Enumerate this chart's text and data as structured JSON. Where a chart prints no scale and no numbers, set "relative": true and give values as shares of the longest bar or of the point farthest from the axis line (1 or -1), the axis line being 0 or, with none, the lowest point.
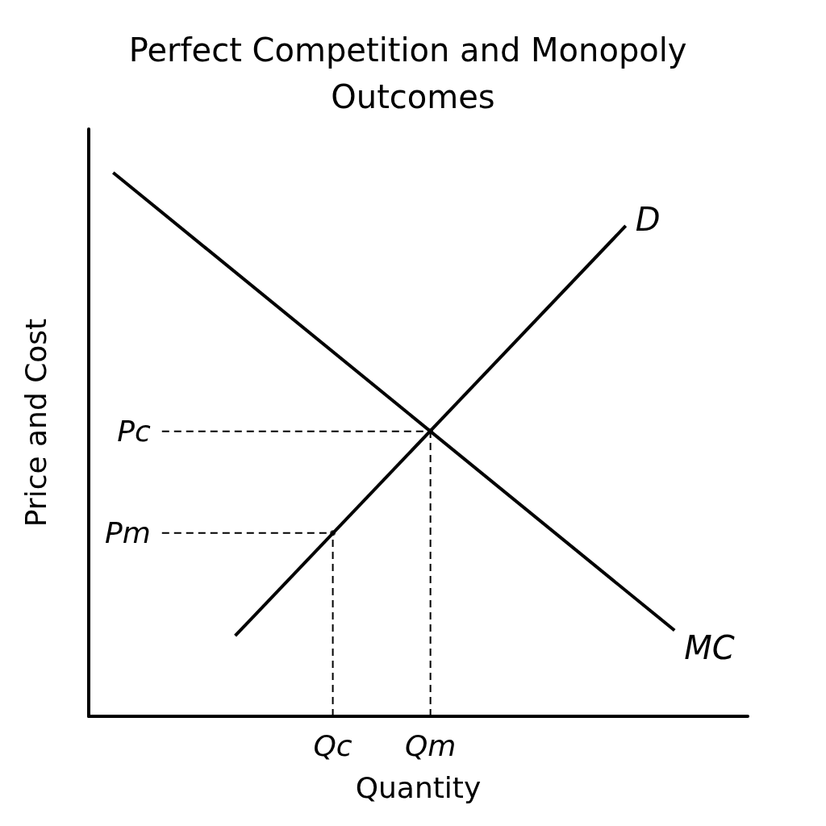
{
  "chart_data": {
    "type": "line",
    "title": "Perfect Competition and Monopoly Outcomes",
    "xlabel": "Quantity",
    "ylabel": "Price and Cost",
    "relative": true,
    "categories": [
      null,
      null,
      null,
      null,
      null,
      null,
      null,
      null,
      null,
      null,
      "Qc",
      null,
      null,
      null,
      "Qm",
      null,
      null,
      null,
      null,
      null,
      null,
      null,
      null,
      null,
      null,
      null,
      null,
      null
    ],
    "grid": false,
    "legend": false,
    "marker": "none",
    "line_style": "solid",
    "series": [
      {
        "name": "MC",
        "color": "#000000",
        "values": [
          null,
          1,
          null,
          null,
          null,
          null,
          null,
          null,
          null,
          null,
          null,
          null,
          null,
          null,
          null,
          null,
          null,
          null,
          null,
          null,
          null,
          null,
          null,
          null,
          0.158,
          null,
          null,
          null
        ]
      },
      {
        "name": "D",
        "color": "#000000",
        "values": [
          null,
          null,
          null,
          null,
          null,
          null,
          0.148,
          null,
          null,
          null,
          null,
          null,
          null,
          null,
          null,
          null,
          null,
          null,
          null,
          null,
          null,
          null,
          0.902,
          null,
          null,
          null,
          null,
          null
        ]
      },
      {
        "name": "Pc",
        "color": "#000000",
        "line_style": "dashed",
        "values": [
          null,
          null,
          null,
          0.524,
          null,
          null,
          null,
          null,
          null,
          null,
          null,
          null,
          null,
          null,
          0.524,
          null,
          null,
          null,
          null,
          null,
          null,
          null,
          null,
          null,
          null,
          null,
          null,
          null
        ]
      },
      {
        "name": "Pm",
        "color": "#000000",
        "line_style": "dashed",
        "values": [
          null,
          null,
          null,
          0.337,
          null,
          null,
          null,
          null,
          null,
          null,
          0.337,
          null,
          null,
          null,
          null,
          null,
          null,
          null,
          null,
          null,
          null,
          null,
          null,
          null,
          null,
          null,
          null,
          null
        ]
      },
      {
        "type": "lollipop",
        "color": "#000000",
        "line_style": "dashed",
        "values": [
          null,
          null,
          null,
          null,
          null,
          null,
          null,
          null,
          null,
          null,
          0.337,
          null,
          null,
          null,
          0.524,
          null,
          null,
          null,
          null,
          null,
          null,
          null,
          null,
          null,
          null,
          null,
          null,
          null
        ]
      }
    ]
  }
}
